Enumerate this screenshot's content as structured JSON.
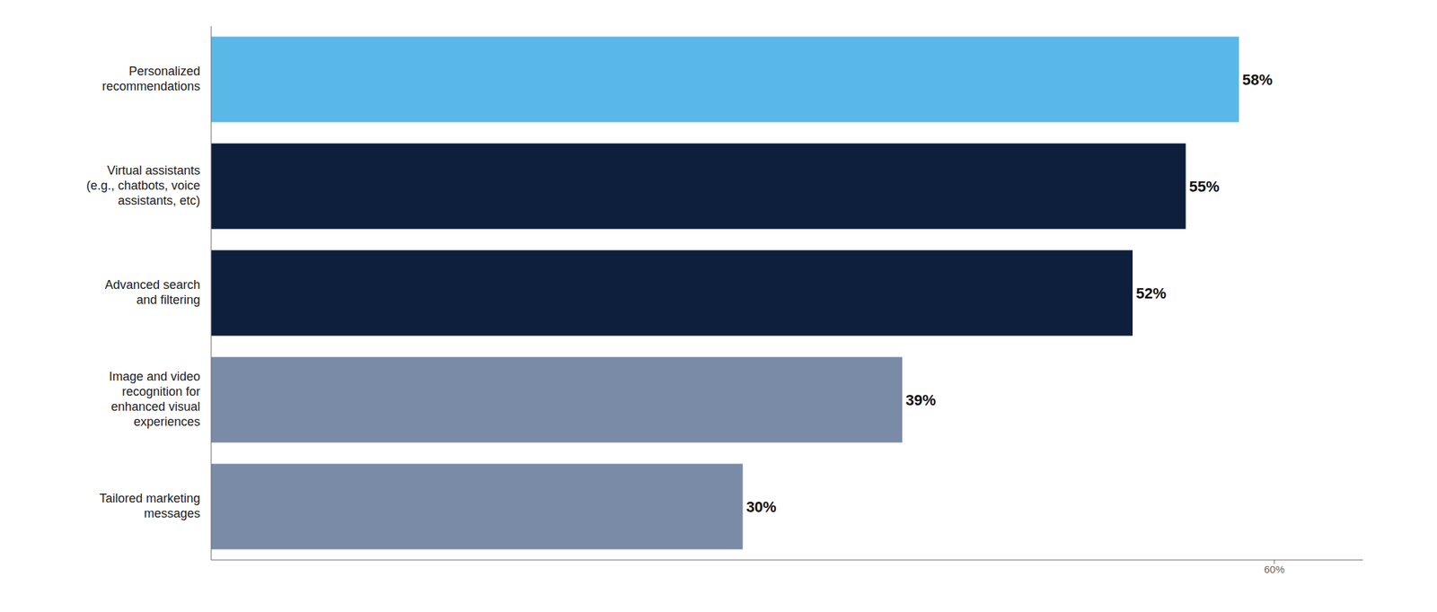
{
  "chart_data": {
    "type": "bar",
    "orientation": "horizontal",
    "categories": [
      "Tailored marketing\nmessages",
      "Image and video\nrecognition for\nenhanced visual\nexperiences",
      "Advanced search\nand filtering",
      "Virtual assistants\n(e.g., chatbots, voice\nassistants, etc)",
      "Personalized\nrecommendations"
    ],
    "values": [
      30,
      39,
      52,
      55,
      58
    ],
    "value_labels": [
      "30%",
      "39%",
      "52%",
      "55%",
      "58%"
    ],
    "colors": [
      "#7a8ba8",
      "#7a8ba8",
      "#0d1f3c",
      "#0d1f3c",
      "#5ab8e8"
    ],
    "xlim": [
      0,
      65
    ],
    "xticks": [
      {
        "value": 60,
        "label": "60%"
      }
    ],
    "grid": false
  }
}
